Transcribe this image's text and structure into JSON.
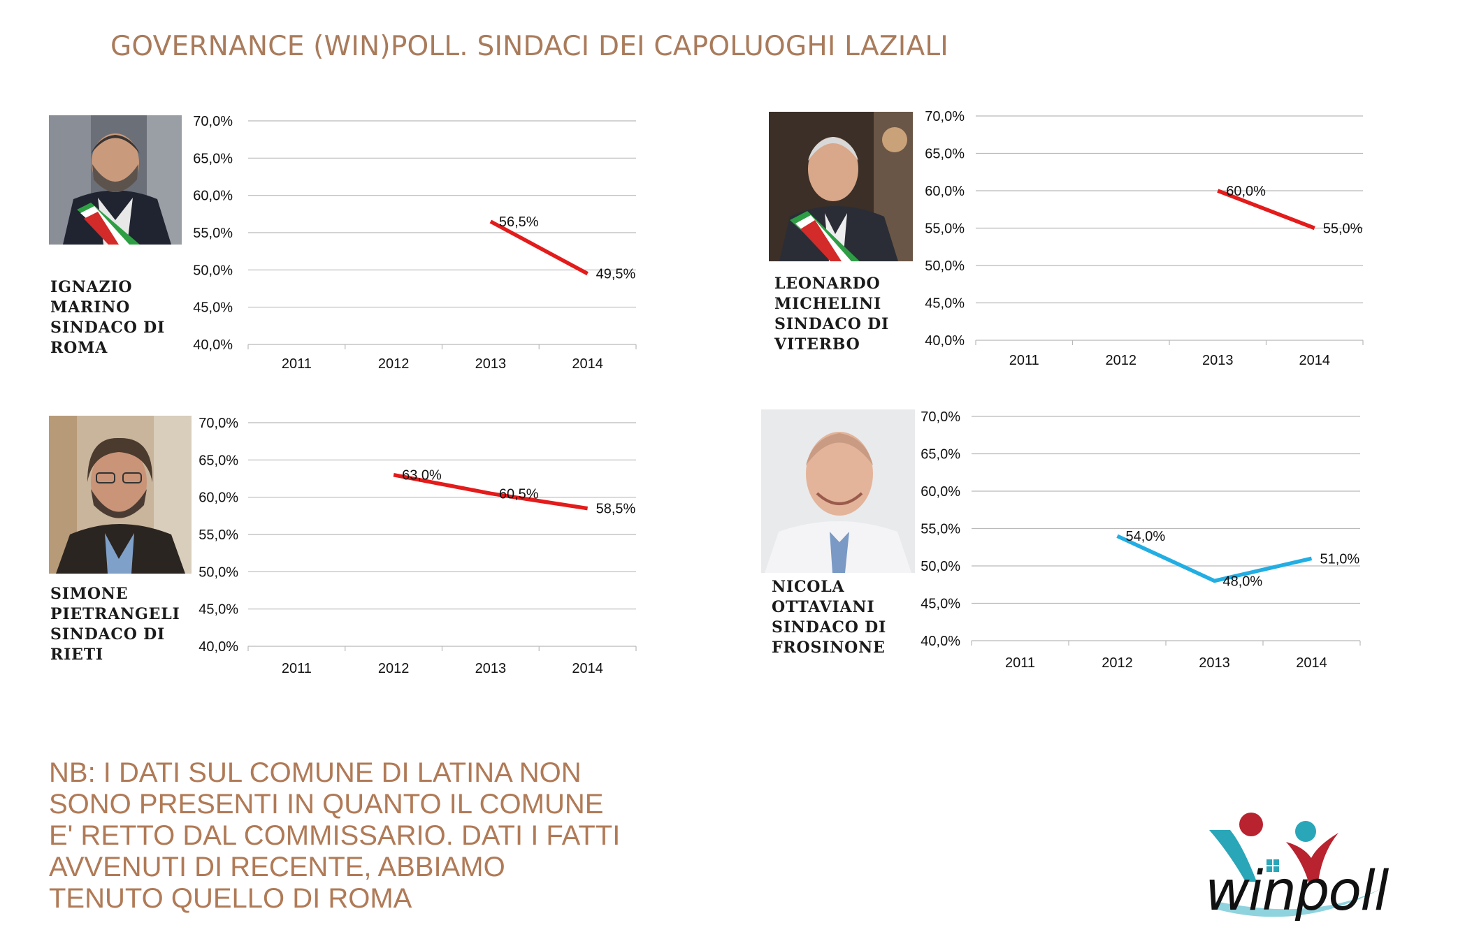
{
  "title": "GOVERNANCE (WIN)POLL. SINDACI DEI CAPOLUOGHI LAZIALI",
  "panels": [
    {
      "id": "roma",
      "caption": [
        "IGNAZIO",
        "MARINO",
        "SINDACO DI",
        "ROMA"
      ],
      "photo_icon": "mayor-portrait-icon"
    },
    {
      "id": "viterbo",
      "caption": [
        "LEONARDO",
        "MICHELINI",
        "SINDACO DI",
        "VITERBO"
      ],
      "photo_icon": "mayor-portrait-icon"
    },
    {
      "id": "rieti",
      "caption": [
        "SIMONE",
        "PIETRANGELI",
        "SINDACO DI",
        "RIETI"
      ],
      "photo_icon": "mayor-portrait-icon"
    },
    {
      "id": "frosinone",
      "caption": [
        "NICOLA",
        "OTTAVIANI",
        "SINDACO DI",
        "FROSINONE"
      ],
      "photo_icon": "mayor-portrait-icon"
    }
  ],
  "chart_data": [
    {
      "type": "line",
      "categories": [
        "2011",
        "2012",
        "2013",
        "2014"
      ],
      "y_ticks": [
        "70,0%",
        "65,0%",
        "60,0%",
        "55,0%",
        "50,0%",
        "45,0%",
        "40,0%"
      ],
      "ylim": [
        40,
        70
      ],
      "grid": true,
      "series": [
        {
          "values": [
            null,
            null,
            56.5,
            49.5
          ],
          "labels": [
            "",
            "",
            "56,5%",
            "49,5%"
          ],
          "color": "#e31b1b"
        }
      ]
    },
    {
      "type": "line",
      "categories": [
        "2011",
        "2012",
        "2013",
        "2014"
      ],
      "y_ticks": [
        "70,0%",
        "65,0%",
        "60,0%",
        "55,0%",
        "50,0%",
        "45,0%",
        "40,0%"
      ],
      "ylim": [
        40,
        70
      ],
      "grid": true,
      "series": [
        {
          "values": [
            null,
            null,
            60.0,
            55.0
          ],
          "labels": [
            "",
            "",
            "60,0%",
            "55,0%"
          ],
          "color": "#e31b1b"
        }
      ]
    },
    {
      "type": "line",
      "categories": [
        "2011",
        "2012",
        "2013",
        "2014"
      ],
      "y_ticks": [
        "70,0%",
        "65,0%",
        "60,0%",
        "55,0%",
        "50,0%",
        "45,0%",
        "40,0%"
      ],
      "ylim": [
        40,
        70
      ],
      "grid": true,
      "series": [
        {
          "values": [
            null,
            63.0,
            60.5,
            58.5
          ],
          "labels": [
            "",
            "63,0%",
            "60,5%",
            "58,5%"
          ],
          "color": "#e31b1b"
        }
      ]
    },
    {
      "type": "line",
      "categories": [
        "2011",
        "2012",
        "2013",
        "2014"
      ],
      "y_ticks": [
        "70,0%",
        "65,0%",
        "60,0%",
        "55,0%",
        "50,0%",
        "45,0%",
        "40,0%"
      ],
      "ylim": [
        40,
        70
      ],
      "grid": true,
      "series": [
        {
          "values": [
            null,
            54.0,
            48.0,
            51.0
          ],
          "labels": [
            "",
            "54,0%",
            "48,0%",
            "51,0%"
          ],
          "color": "#22aee3"
        }
      ]
    }
  ],
  "note": [
    "NB: I DATI SUL COMUNE DI LATINA NON",
    "SONO PRESENTI IN QUANTO IL COMUNE",
    "E' RETTO DAL COMMISSARIO. DATI I FATTI",
    "AVVENUTI DI RECENTE, ABBIAMO",
    "TENUTO QUELLO DI ROMA"
  ],
  "logo": {
    "text": "winpoll",
    "icon": "winpoll-logo-icon",
    "colors": {
      "red": "#b8232f",
      "teal": "#2aa6b9",
      "swoosh": "#8fd3de"
    }
  }
}
